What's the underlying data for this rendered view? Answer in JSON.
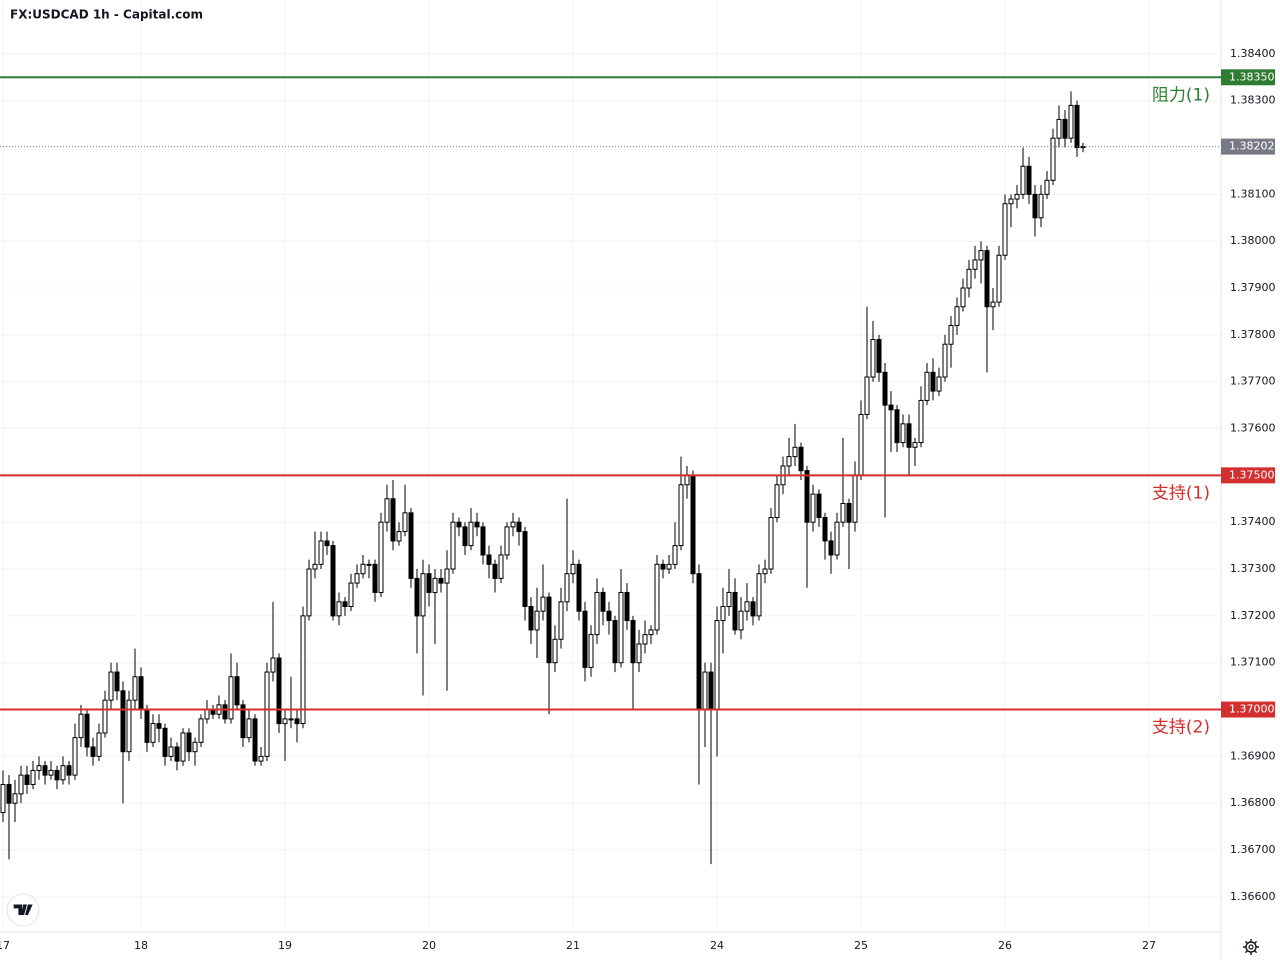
{
  "chart_data": {
    "type": "candlestick",
    "title": "FX:USDCAD 1h - Capital.com",
    "up_color": "#ffffff",
    "down_color": "#000000",
    "wick_color": "#000000",
    "grid": true,
    "ylim": [
      1.36525,
      1.38515
    ],
    "yticks": [
      {
        "value": 1.384,
        "label": "1.38400"
      },
      {
        "value": 1.383,
        "label": "1.38300"
      },
      {
        "value": 1.381,
        "label": "1.38100"
      },
      {
        "value": 1.38,
        "label": "1.38000"
      },
      {
        "value": 1.379,
        "label": "1.37900"
      },
      {
        "value": 1.378,
        "label": "1.37800"
      },
      {
        "value": 1.377,
        "label": "1.37700"
      },
      {
        "value": 1.376,
        "label": "1.37600"
      },
      {
        "value": 1.374,
        "label": "1.37400"
      },
      {
        "value": 1.373,
        "label": "1.37300"
      },
      {
        "value": 1.372,
        "label": "1.37200"
      },
      {
        "value": 1.371,
        "label": "1.37100"
      },
      {
        "value": 1.369,
        "label": "1.36900"
      },
      {
        "value": 1.368,
        "label": "1.36800"
      },
      {
        "value": 1.367,
        "label": "1.36700"
      },
      {
        "value": 1.366,
        "label": "1.36600"
      }
    ],
    "xticks": [
      {
        "value": 0,
        "label": "17"
      },
      {
        "value": 23,
        "label": "18"
      },
      {
        "value": 47,
        "label": "19"
      },
      {
        "value": 71,
        "label": "20"
      },
      {
        "value": 95,
        "label": "21"
      },
      {
        "value": 119,
        "label": "24"
      },
      {
        "value": 143,
        "label": "25"
      },
      {
        "value": 167,
        "label": "26"
      },
      {
        "value": 191,
        "label": "27"
      }
    ],
    "levels": [
      {
        "value": 1.3835,
        "label": "1.38350",
        "name": "阻力(1)",
        "color": "#2e7d32"
      },
      {
        "value": 1.375,
        "label": "1.37500",
        "name": "支持(1)",
        "color": "#d32f2f"
      },
      {
        "value": 1.37,
        "label": "1.37000",
        "name": "支持(2)",
        "color": "#d32f2f"
      }
    ],
    "last_price": {
      "value": 1.38202,
      "label": "1.38202",
      "color": "#787b86"
    },
    "candles": [
      [
        1.3678,
        1.3687,
        1.3676,
        1.3684
      ],
      [
        1.3684,
        1.3686,
        1.3668,
        1.368
      ],
      [
        1.368,
        1.3685,
        1.3676,
        1.3682
      ],
      [
        1.3682,
        1.3688,
        1.368,
        1.3686
      ],
      [
        1.3686,
        1.3688,
        1.3682,
        1.3684
      ],
      [
        1.3684,
        1.3689,
        1.3683,
        1.3687
      ],
      [
        1.3687,
        1.369,
        1.3685,
        1.3688
      ],
      [
        1.3688,
        1.3689,
        1.3684,
        1.3686
      ],
      [
        1.3686,
        1.3689,
        1.3685,
        1.3687
      ],
      [
        1.3687,
        1.3688,
        1.3683,
        1.3685
      ],
      [
        1.3685,
        1.369,
        1.3684,
        1.3688
      ],
      [
        1.3688,
        1.3689,
        1.3684,
        1.3686
      ],
      [
        1.3686,
        1.3697,
        1.3685,
        1.3694
      ],
      [
        1.3694,
        1.3701,
        1.3692,
        1.3699
      ],
      [
        1.3699,
        1.37,
        1.369,
        1.3692
      ],
      [
        1.3692,
        1.3694,
        1.3688,
        1.369
      ],
      [
        1.369,
        1.3697,
        1.3689,
        1.3695
      ],
      [
        1.3695,
        1.3704,
        1.3694,
        1.3702
      ],
      [
        1.3702,
        1.371,
        1.37,
        1.3708
      ],
      [
        1.3708,
        1.371,
        1.3702,
        1.3704
      ],
      [
        1.3704,
        1.3706,
        1.368,
        1.3691
      ],
      [
        1.3691,
        1.3704,
        1.3689,
        1.3702
      ],
      [
        1.3702,
        1.3713,
        1.37,
        1.3707
      ],
      [
        1.3707,
        1.3709,
        1.3698,
        1.37
      ],
      [
        1.37,
        1.3701,
        1.3691,
        1.3693
      ],
      [
        1.3693,
        1.3699,
        1.3692,
        1.3697
      ],
      [
        1.3697,
        1.3699,
        1.3693,
        1.3696
      ],
      [
        1.3696,
        1.3697,
        1.3688,
        1.369
      ],
      [
        1.369,
        1.3694,
        1.3689,
        1.3692
      ],
      [
        1.3692,
        1.3693,
        1.3687,
        1.3689
      ],
      [
        1.3689,
        1.3696,
        1.3688,
        1.3695
      ],
      [
        1.3695,
        1.3696,
        1.3689,
        1.3691
      ],
      [
        1.3691,
        1.3694,
        1.3688,
        1.3693
      ],
      [
        1.3693,
        1.3699,
        1.3692,
        1.3698
      ],
      [
        1.3698,
        1.3702,
        1.3697,
        1.37
      ],
      [
        1.37,
        1.3701,
        1.3698,
        1.3699
      ],
      [
        1.3699,
        1.3703,
        1.3698,
        1.3701
      ],
      [
        1.3701,
        1.3702,
        1.3697,
        1.3698
      ],
      [
        1.3698,
        1.3712,
        1.3697,
        1.3707
      ],
      [
        1.3707,
        1.371,
        1.37,
        1.3701
      ],
      [
        1.3701,
        1.3702,
        1.3692,
        1.3694
      ],
      [
        1.3694,
        1.37,
        1.3693,
        1.3698
      ],
      [
        1.3698,
        1.3699,
        1.3688,
        1.3689
      ],
      [
        1.3689,
        1.3692,
        1.3688,
        1.369
      ],
      [
        1.369,
        1.371,
        1.3689,
        1.3708
      ],
      [
        1.3708,
        1.3723,
        1.3706,
        1.3711
      ],
      [
        1.3711,
        1.3712,
        1.3695,
        1.3697
      ],
      [
        1.3697,
        1.37,
        1.3689,
        1.3698
      ],
      [
        1.3698,
        1.3707,
        1.3696,
        1.3698
      ],
      [
        1.3698,
        1.37,
        1.3693,
        1.3697
      ],
      [
        1.3697,
        1.3722,
        1.3696,
        1.372
      ],
      [
        1.372,
        1.3732,
        1.3719,
        1.373
      ],
      [
        1.373,
        1.3738,
        1.3728,
        1.3731
      ],
      [
        1.3731,
        1.3738,
        1.373,
        1.3736
      ],
      [
        1.3736,
        1.3738,
        1.3733,
        1.3735
      ],
      [
        1.3735,
        1.3736,
        1.3719,
        1.372
      ],
      [
        1.372,
        1.3725,
        1.3718,
        1.3723
      ],
      [
        1.3723,
        1.3724,
        1.372,
        1.3722
      ],
      [
        1.3722,
        1.3729,
        1.3721,
        1.3727
      ],
      [
        1.3727,
        1.3731,
        1.3726,
        1.3729
      ],
      [
        1.3729,
        1.3733,
        1.3728,
        1.3731
      ],
      [
        1.3731,
        1.3732,
        1.3728,
        1.3731
      ],
      [
        1.3731,
        1.3732,
        1.3723,
        1.3725
      ],
      [
        1.3725,
        1.3742,
        1.3724,
        1.374
      ],
      [
        1.374,
        1.3748,
        1.3738,
        1.3745
      ],
      [
        1.3745,
        1.3749,
        1.3734,
        1.3736
      ],
      [
        1.3736,
        1.374,
        1.3735,
        1.3738
      ],
      [
        1.3738,
        1.3748,
        1.3737,
        1.3742
      ],
      [
        1.3742,
        1.3743,
        1.3726,
        1.3728
      ],
      [
        1.3728,
        1.373,
        1.3712,
        1.372
      ],
      [
        1.372,
        1.3732,
        1.3703,
        1.3729
      ],
      [
        1.3729,
        1.3731,
        1.3722,
        1.3725
      ],
      [
        1.3725,
        1.373,
        1.3714,
        1.3728
      ],
      [
        1.3728,
        1.373,
        1.3725,
        1.3727
      ],
      [
        1.3727,
        1.3734,
        1.3704,
        1.373
      ],
      [
        1.373,
        1.3742,
        1.3729,
        1.374
      ],
      [
        1.374,
        1.3741,
        1.3737,
        1.3739
      ],
      [
        1.3739,
        1.374,
        1.3733,
        1.3735
      ],
      [
        1.3735,
        1.3743,
        1.3734,
        1.374
      ],
      [
        1.374,
        1.3742,
        1.3737,
        1.3739
      ],
      [
        1.3739,
        1.374,
        1.3731,
        1.3733
      ],
      [
        1.3733,
        1.3735,
        1.3728,
        1.3731
      ],
      [
        1.3731,
        1.3732,
        1.3725,
        1.3728
      ],
      [
        1.3728,
        1.3735,
        1.3727,
        1.3733
      ],
      [
        1.3733,
        1.374,
        1.3732,
        1.3739
      ],
      [
        1.3739,
        1.3742,
        1.3737,
        1.374
      ],
      [
        1.374,
        1.3741,
        1.3735,
        1.3738
      ],
      [
        1.3738,
        1.3739,
        1.3719,
        1.3722
      ],
      [
        1.3722,
        1.3724,
        1.3714,
        1.3717
      ],
      [
        1.3717,
        1.3726,
        1.3711,
        1.3721
      ],
      [
        1.3721,
        1.3731,
        1.3719,
        1.3724
      ],
      [
        1.3724,
        1.3725,
        1.3699,
        1.371
      ],
      [
        1.371,
        1.3718,
        1.3708,
        1.3715
      ],
      [
        1.3715,
        1.3726,
        1.3713,
        1.3723
      ],
      [
        1.3723,
        1.3745,
        1.3721,
        1.3729
      ],
      [
        1.3729,
        1.3734,
        1.3727,
        1.3731
      ],
      [
        1.3731,
        1.3732,
        1.3719,
        1.3721
      ],
      [
        1.3721,
        1.3723,
        1.3706,
        1.3709
      ],
      [
        1.3709,
        1.3718,
        1.3707,
        1.3716
      ],
      [
        1.3716,
        1.3728,
        1.3714,
        1.3725
      ],
      [
        1.3725,
        1.3726,
        1.3718,
        1.3721
      ],
      [
        1.3721,
        1.3723,
        1.3716,
        1.3719
      ],
      [
        1.3719,
        1.372,
        1.3708,
        1.371
      ],
      [
        1.371,
        1.373,
        1.3709,
        1.3725
      ],
      [
        1.3725,
        1.3727,
        1.3717,
        1.3719
      ],
      [
        1.3719,
        1.372,
        1.37,
        1.371
      ],
      [
        1.371,
        1.3717,
        1.3708,
        1.3714
      ],
      [
        1.3714,
        1.3719,
        1.3712,
        1.3716
      ],
      [
        1.3716,
        1.3718,
        1.3714,
        1.3717
      ],
      [
        1.3717,
        1.3733,
        1.3716,
        1.3731
      ],
      [
        1.3731,
        1.3732,
        1.3728,
        1.373
      ],
      [
        1.373,
        1.3733,
        1.3729,
        1.3731
      ],
      [
        1.3731,
        1.374,
        1.373,
        1.3735
      ],
      [
        1.3735,
        1.3754,
        1.3734,
        1.3748
      ],
      [
        1.3748,
        1.3752,
        1.3745,
        1.375
      ],
      [
        1.375,
        1.3751,
        1.3727,
        1.3729
      ],
      [
        1.3729,
        1.3731,
        1.3684,
        1.37
      ],
      [
        1.37,
        1.371,
        1.3692,
        1.3708
      ],
      [
        1.3708,
        1.371,
        1.3667,
        1.37
      ],
      [
        1.37,
        1.3722,
        1.369,
        1.3719
      ],
      [
        1.3719,
        1.3726,
        1.3712,
        1.3722
      ],
      [
        1.3722,
        1.373,
        1.372,
        1.3725
      ],
      [
        1.3725,
        1.3728,
        1.3716,
        1.3717
      ],
      [
        1.3717,
        1.3724,
        1.3715,
        1.3721
      ],
      [
        1.3721,
        1.3727,
        1.3719,
        1.3723
      ],
      [
        1.3723,
        1.3724,
        1.3718,
        1.372
      ],
      [
        1.372,
        1.3731,
        1.3719,
        1.3729
      ],
      [
        1.3729,
        1.3732,
        1.3727,
        1.373
      ],
      [
        1.373,
        1.3743,
        1.3729,
        1.3741
      ],
      [
        1.3741,
        1.375,
        1.374,
        1.3748
      ],
      [
        1.3748,
        1.3754,
        1.3746,
        1.3752
      ],
      [
        1.3752,
        1.3758,
        1.375,
        1.3754
      ],
      [
        1.3754,
        1.3761,
        1.3752,
        1.3756
      ],
      [
        1.3756,
        1.3757,
        1.3749,
        1.3751
      ],
      [
        1.3751,
        1.3752,
        1.3726,
        1.374
      ],
      [
        1.374,
        1.3748,
        1.3738,
        1.3746
      ],
      [
        1.3746,
        1.3747,
        1.3739,
        1.3741
      ],
      [
        1.3741,
        1.3742,
        1.3732,
        1.3736
      ],
      [
        1.3736,
        1.3738,
        1.3729,
        1.3733
      ],
      [
        1.3733,
        1.3742,
        1.3732,
        1.374
      ],
      [
        1.374,
        1.3758,
        1.3739,
        1.3744
      ],
      [
        1.3744,
        1.3745,
        1.373,
        1.374
      ],
      [
        1.374,
        1.3753,
        1.3738,
        1.375
      ],
      [
        1.375,
        1.3766,
        1.3749,
        1.3763
      ],
      [
        1.3763,
        1.3786,
        1.3762,
        1.3771
      ],
      [
        1.3771,
        1.3783,
        1.377,
        1.3779
      ],
      [
        1.3779,
        1.378,
        1.377,
        1.3772
      ],
      [
        1.3772,
        1.3774,
        1.3741,
        1.3765
      ],
      [
        1.3765,
        1.3768,
        1.3755,
        1.3764
      ],
      [
        1.3764,
        1.3765,
        1.3755,
        1.3757
      ],
      [
        1.3757,
        1.3763,
        1.3756,
        1.3761
      ],
      [
        1.3761,
        1.3763,
        1.375,
        1.3756
      ],
      [
        1.3756,
        1.3758,
        1.3752,
        1.3757
      ],
      [
        1.3757,
        1.3769,
        1.3756,
        1.3766
      ],
      [
        1.3766,
        1.3774,
        1.3765,
        1.3772
      ],
      [
        1.3772,
        1.3775,
        1.3766,
        1.3768
      ],
      [
        1.3768,
        1.3773,
        1.3767,
        1.3771
      ],
      [
        1.3771,
        1.378,
        1.377,
        1.3778
      ],
      [
        1.3778,
        1.3784,
        1.3773,
        1.3782
      ],
      [
        1.3782,
        1.3788,
        1.378,
        1.3786
      ],
      [
        1.3786,
        1.3792,
        1.3785,
        1.379
      ],
      [
        1.379,
        1.3796,
        1.3788,
        1.3794
      ],
      [
        1.3794,
        1.3799,
        1.3792,
        1.3796
      ],
      [
        1.3796,
        1.38,
        1.3791,
        1.3798
      ],
      [
        1.3798,
        1.3799,
        1.3772,
        1.3786
      ],
      [
        1.3786,
        1.379,
        1.3781,
        1.3787
      ],
      [
        1.3787,
        1.3799,
        1.3786,
        1.3797
      ],
      [
        1.3797,
        1.381,
        1.3796,
        1.3808
      ],
      [
        1.3808,
        1.381,
        1.3803,
        1.3809
      ],
      [
        1.3809,
        1.3812,
        1.3807,
        1.381
      ],
      [
        1.381,
        1.382,
        1.3809,
        1.3816
      ],
      [
        1.3816,
        1.3818,
        1.3808,
        1.381
      ],
      [
        1.381,
        1.3812,
        1.3801,
        1.3805
      ],
      [
        1.3805,
        1.3812,
        1.3803,
        1.381
      ],
      [
        1.381,
        1.3815,
        1.3809,
        1.3813
      ],
      [
        1.3813,
        1.3824,
        1.3812,
        1.3822
      ],
      [
        1.3822,
        1.3829,
        1.382,
        1.3826
      ],
      [
        1.3826,
        1.3828,
        1.382,
        1.3822
      ],
      [
        1.3822,
        1.3832,
        1.3821,
        1.3829
      ],
      [
        1.3829,
        1.383,
        1.3818,
        1.382
      ],
      [
        1.382,
        1.3821,
        1.3819,
        1.38202
      ]
    ]
  }
}
